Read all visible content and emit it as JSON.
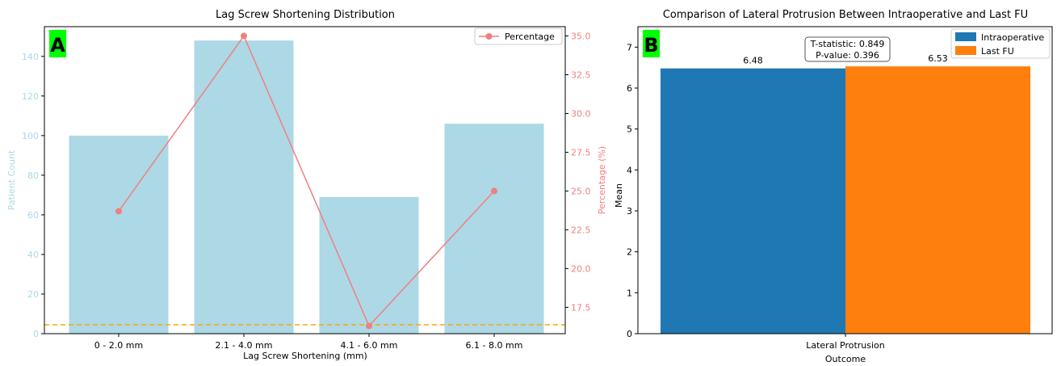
{
  "chart_data": [
    {
      "panel_label": "A",
      "type": "bar",
      "title": "Lag Screw Shortening Distribution",
      "xlabel": "Lag Screw Shortening (mm)",
      "ylabel": "Patient Count",
      "categories": [
        "0 - 2.0 mm",
        "2.1 - 4.0 mm",
        "4.1 - 6.0 mm",
        "6.1 - 8.0 mm"
      ],
      "values": [
        100,
        148,
        69,
        106
      ],
      "ylim": [
        0,
        155
      ],
      "yticks": [
        0,
        20,
        40,
        60,
        80,
        100,
        120,
        140
      ],
      "bar_color": "#add8e6",
      "threshold_line": {
        "y": 4.5,
        "color": "#ffa500",
        "style": "dashed"
      },
      "secondary": {
        "type": "line",
        "name": "Percentage",
        "ylabel": "Percentage (%)",
        "values": [
          23.7,
          35.0,
          16.3,
          25.0
        ],
        "ylim": [
          15.8,
          35.6
        ],
        "yticks": [
          "17.5",
          "20.0",
          "22.5",
          "25.0",
          "27.5",
          "30.0",
          "32.5",
          "35.0"
        ],
        "color": "#f08080"
      },
      "legend": {
        "position": "top-right",
        "entries": [
          "Percentage"
        ]
      },
      "grid": false,
      "label_bg": "#00ff00"
    },
    {
      "panel_label": "B",
      "type": "bar",
      "title": "Comparison of Lateral Protrusion Between Intraoperative and Last FU",
      "xlabel": "Outcome",
      "ylabel": "Mean",
      "categories": [
        "Lateral Protrusion"
      ],
      "series": [
        {
          "name": "Intraoperative",
          "values": [
            6.48
          ],
          "color": "#1f77b4",
          "label": "6.48"
        },
        {
          "name": "Last FU",
          "values": [
            6.53
          ],
          "color": "#ff7f0e",
          "label": "6.53"
        }
      ],
      "ylim": [
        0,
        7.5
      ],
      "yticks": [
        0,
        1,
        2,
        3,
        4,
        5,
        6,
        7
      ],
      "annotation": [
        "T-statistic: 0.849",
        "P-value: 0.396"
      ],
      "legend": {
        "position": "top-right",
        "entries": [
          "Intraoperative",
          "Last FU"
        ]
      },
      "grid": false,
      "label_bg": "#00ff00"
    }
  ]
}
